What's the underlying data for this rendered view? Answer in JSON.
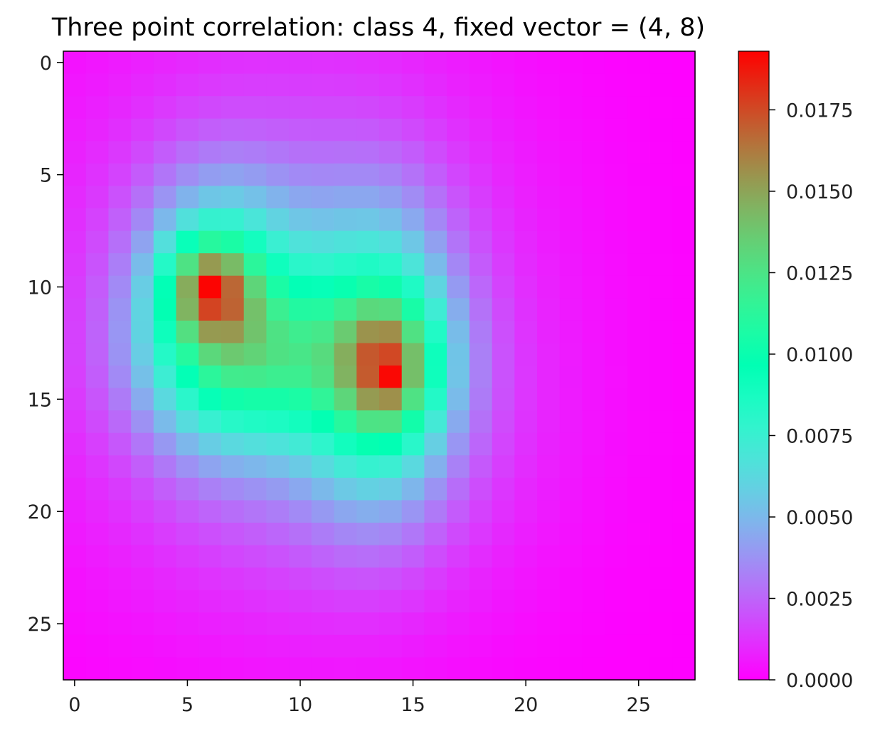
{
  "chart_data": {
    "type": "heatmap",
    "title": "Three point correlation: class 4, fixed vector = (4, 8)",
    "xlabel": "",
    "ylabel": "",
    "colormap": "rainbow",
    "grid": false,
    "x_ticks": [
      "0",
      "5",
      "10",
      "15",
      "20",
      "25"
    ],
    "y_ticks": [
      "0",
      "5",
      "10",
      "15",
      "20",
      "25"
    ],
    "colorbar": {
      "range": [
        0,
        0.0193
      ],
      "ticks": [
        "0.0000",
        "0.0025",
        "0.0050",
        "0.0075",
        "0.0100",
        "0.0125",
        "0.0150",
        "0.0175"
      ]
    },
    "rows": 28,
    "cols": 28,
    "peaks": [
      {
        "row": 10,
        "col": 6,
        "value": 0.0192
      },
      {
        "row": 14,
        "col": 14,
        "value": 0.0191
      }
    ]
  }
}
